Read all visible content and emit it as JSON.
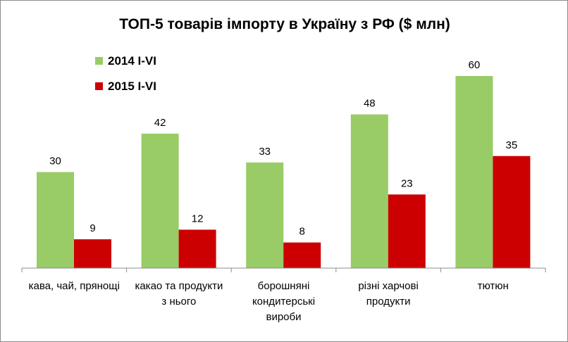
{
  "chart_data": {
    "type": "bar",
    "title": "ТОП-5 товарів імпорту в Україну з РФ ($ млн)",
    "categories": [
      [
        "кава, чай, прянощі"
      ],
      [
        "какао та продукти",
        "з нього"
      ],
      [
        "борошняні",
        "кондитерські",
        "вироби"
      ],
      [
        "різні харчові",
        "продукти"
      ],
      [
        "тютюн"
      ]
    ],
    "series": [
      {
        "name": "2014 I-VI",
        "color": "#99cc66",
        "values": [
          30,
          42,
          33,
          48,
          60
        ]
      },
      {
        "name": "2015 I-VI",
        "color": "#cc0000",
        "values": [
          9,
          12,
          8,
          23,
          35
        ]
      }
    ],
    "ylim": [
      0,
      60
    ],
    "legend_position": "top-left",
    "grid": false
  }
}
